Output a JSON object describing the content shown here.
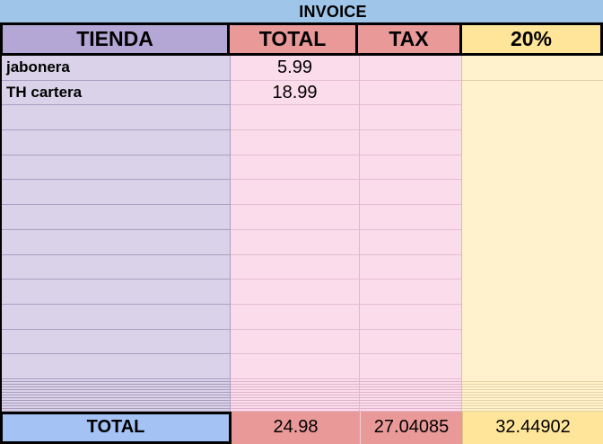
{
  "title": "INVOICE",
  "table": {
    "columns": [
      {
        "label": "TIENDA"
      },
      {
        "label": "TOTAL"
      },
      {
        "label": "TAX"
      },
      {
        "label": "20%"
      }
    ],
    "rows": [
      {
        "tienda": "jabonera",
        "total": "5.99",
        "tax": "",
        "pct": ""
      },
      {
        "tienda": "TH cartera",
        "total": "18.99",
        "tax": "",
        "pct": ""
      },
      {
        "tienda": "",
        "total": "",
        "tax": "",
        "pct": ""
      },
      {
        "tienda": "",
        "total": "",
        "tax": "",
        "pct": ""
      },
      {
        "tienda": "",
        "total": "",
        "tax": "",
        "pct": ""
      },
      {
        "tienda": "",
        "total": "",
        "tax": "",
        "pct": ""
      },
      {
        "tienda": "",
        "total": "",
        "tax": "",
        "pct": ""
      },
      {
        "tienda": "",
        "total": "",
        "tax": "",
        "pct": ""
      },
      {
        "tienda": "",
        "total": "",
        "tax": "",
        "pct": ""
      },
      {
        "tienda": "",
        "total": "",
        "tax": "",
        "pct": ""
      },
      {
        "tienda": "",
        "total": "",
        "tax": "",
        "pct": ""
      },
      {
        "tienda": "",
        "total": "",
        "tax": "",
        "pct": ""
      },
      {
        "tienda": "",
        "total": "",
        "tax": "",
        "pct": ""
      }
    ],
    "footer": {
      "label": "TOTAL",
      "total": "24.98",
      "tax": "27.04085",
      "pct": "32.44902"
    }
  },
  "colors": {
    "page_background": "#9fc5e8",
    "header_tienda": "#b4a7d6",
    "header_total_tax": "#ea9999",
    "header_pct": "#ffe599",
    "body_tienda": "#d9d2e9",
    "body_total_tax": "#fbdcea",
    "body_pct": "#fff2cc",
    "footer_label": "#a4c2f4",
    "footer_total_tax": "#ea9999",
    "footer_pct": "#ffe599",
    "border": "#000000"
  }
}
